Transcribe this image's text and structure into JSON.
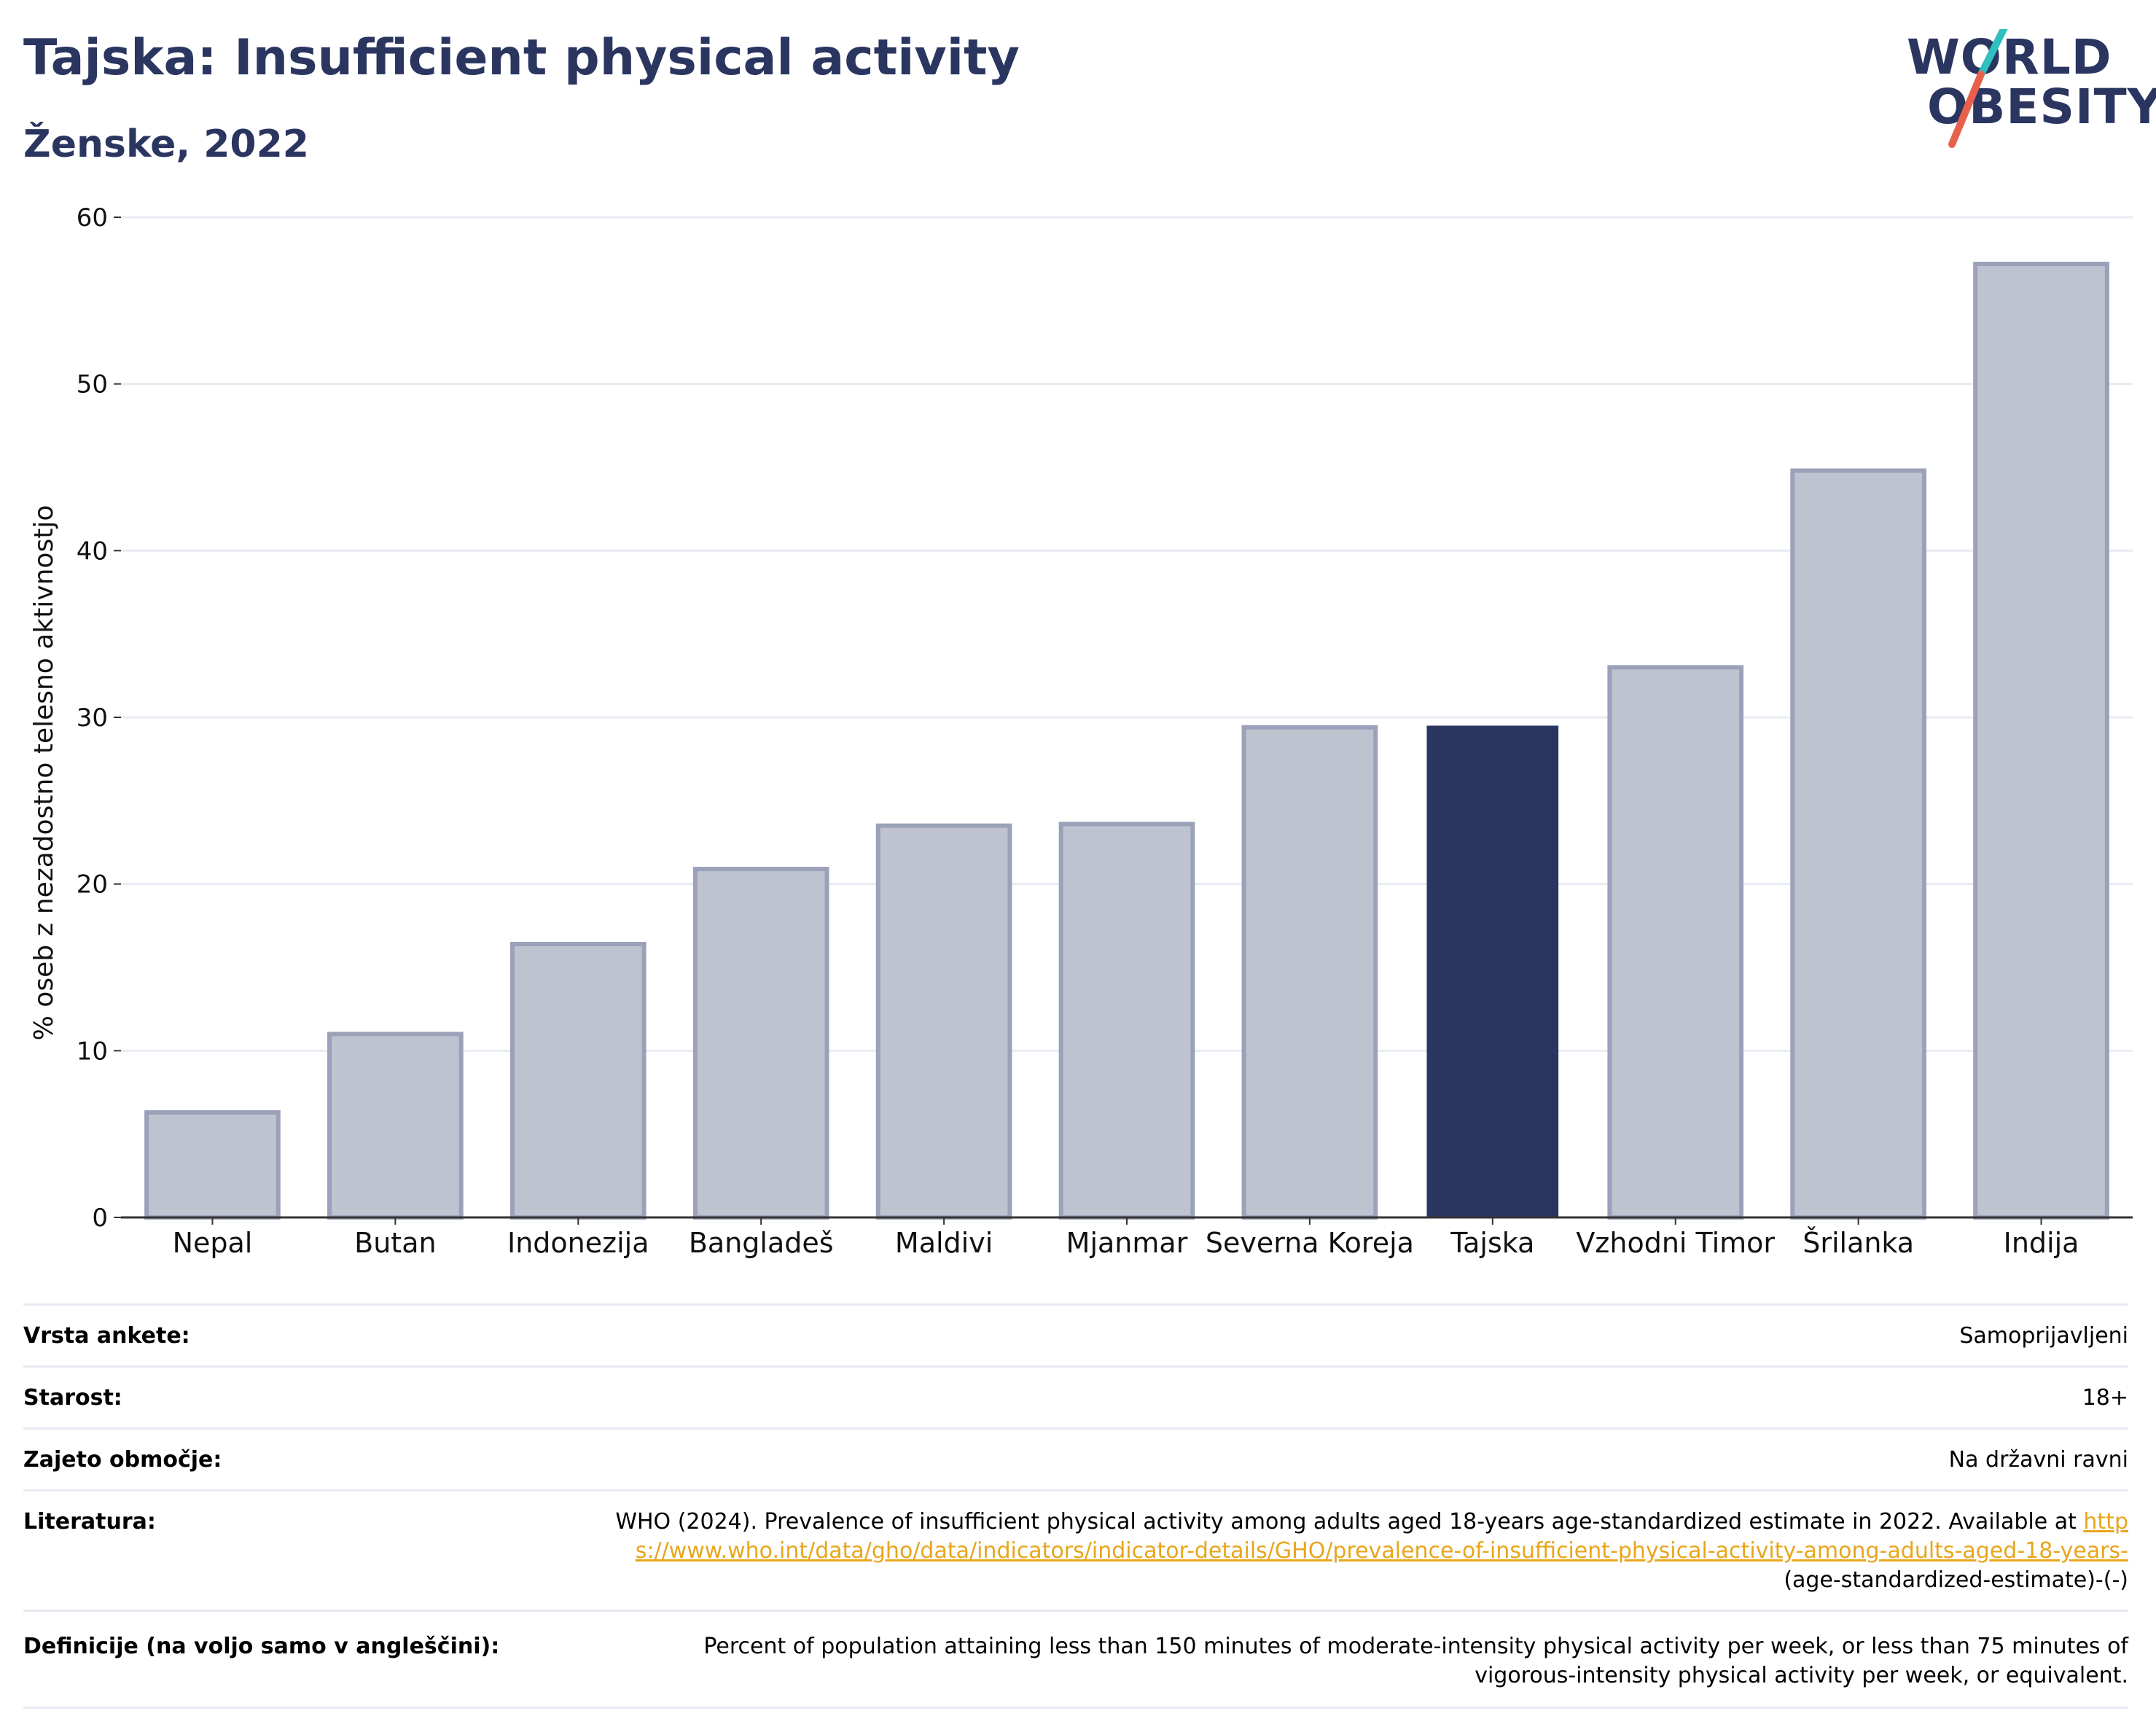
{
  "header": {
    "title": "Tajska: Insufficient physical activity",
    "subtitle": "Ženske, 2022"
  },
  "logo": {
    "line1": "WORLD",
    "line2": "OBESITY",
    "slash_color_top": "#2fbfbf",
    "slash_color_bottom": "#e8604c"
  },
  "chart_data": {
    "type": "bar",
    "categories": [
      "Nepal",
      "Butan",
      "Indonezija",
      "Bangladeš",
      "Maldivi",
      "Mjanmar",
      "Severna Koreja",
      "Tajska",
      "Vzhodni Timor",
      "Šrilanka",
      "Indija"
    ],
    "values": [
      6.3,
      11.0,
      16.4,
      20.9,
      23.5,
      23.6,
      29.4,
      29.5,
      33.0,
      44.8,
      57.2
    ],
    "highlight": "Tajska",
    "ylabel": "% oseb z nezadostno telesno aktivnostjo",
    "ylim": [
      0,
      60
    ],
    "yticks": [
      0,
      10,
      20,
      30,
      40,
      50,
      60
    ],
    "grid": true,
    "colors": {
      "bar": "#bfc3d0",
      "bar_edge": "#9aa1b9",
      "highlight": "#2a3560",
      "grid": "#e8ebf3",
      "axis": "#333333"
    }
  },
  "meta": {
    "survey_type": {
      "label": "Vrsta ankete:",
      "value": "Samoprijavljeni"
    },
    "age": {
      "label": "Starost:",
      "value": "18+"
    },
    "coverage": {
      "label": "Zajeto območje:",
      "value": "Na državni ravni"
    },
    "references": {
      "label": "Literatura:",
      "text": "WHO (2024). Prevalence of insufficient physical activity among adults aged 18-years age-standardized estimate in 2022. Available at",
      "link": "https://www.who.int/data/gho/data/indicators/indicator-details/GHO/prevalence-of-insufficient-physical-activity-among-adults-aged-18-years-",
      "suffix": "(age-standardized-estimate)-(-)"
    },
    "definitions": {
      "label": "Definicije (na voljo samo v angleščini):",
      "value": "Percent of population attaining less than 150 minutes of moderate-intensity physical activity per week, or less than 75 minutes of vigorous-intensity physical activity per week, or equivalent."
    }
  }
}
